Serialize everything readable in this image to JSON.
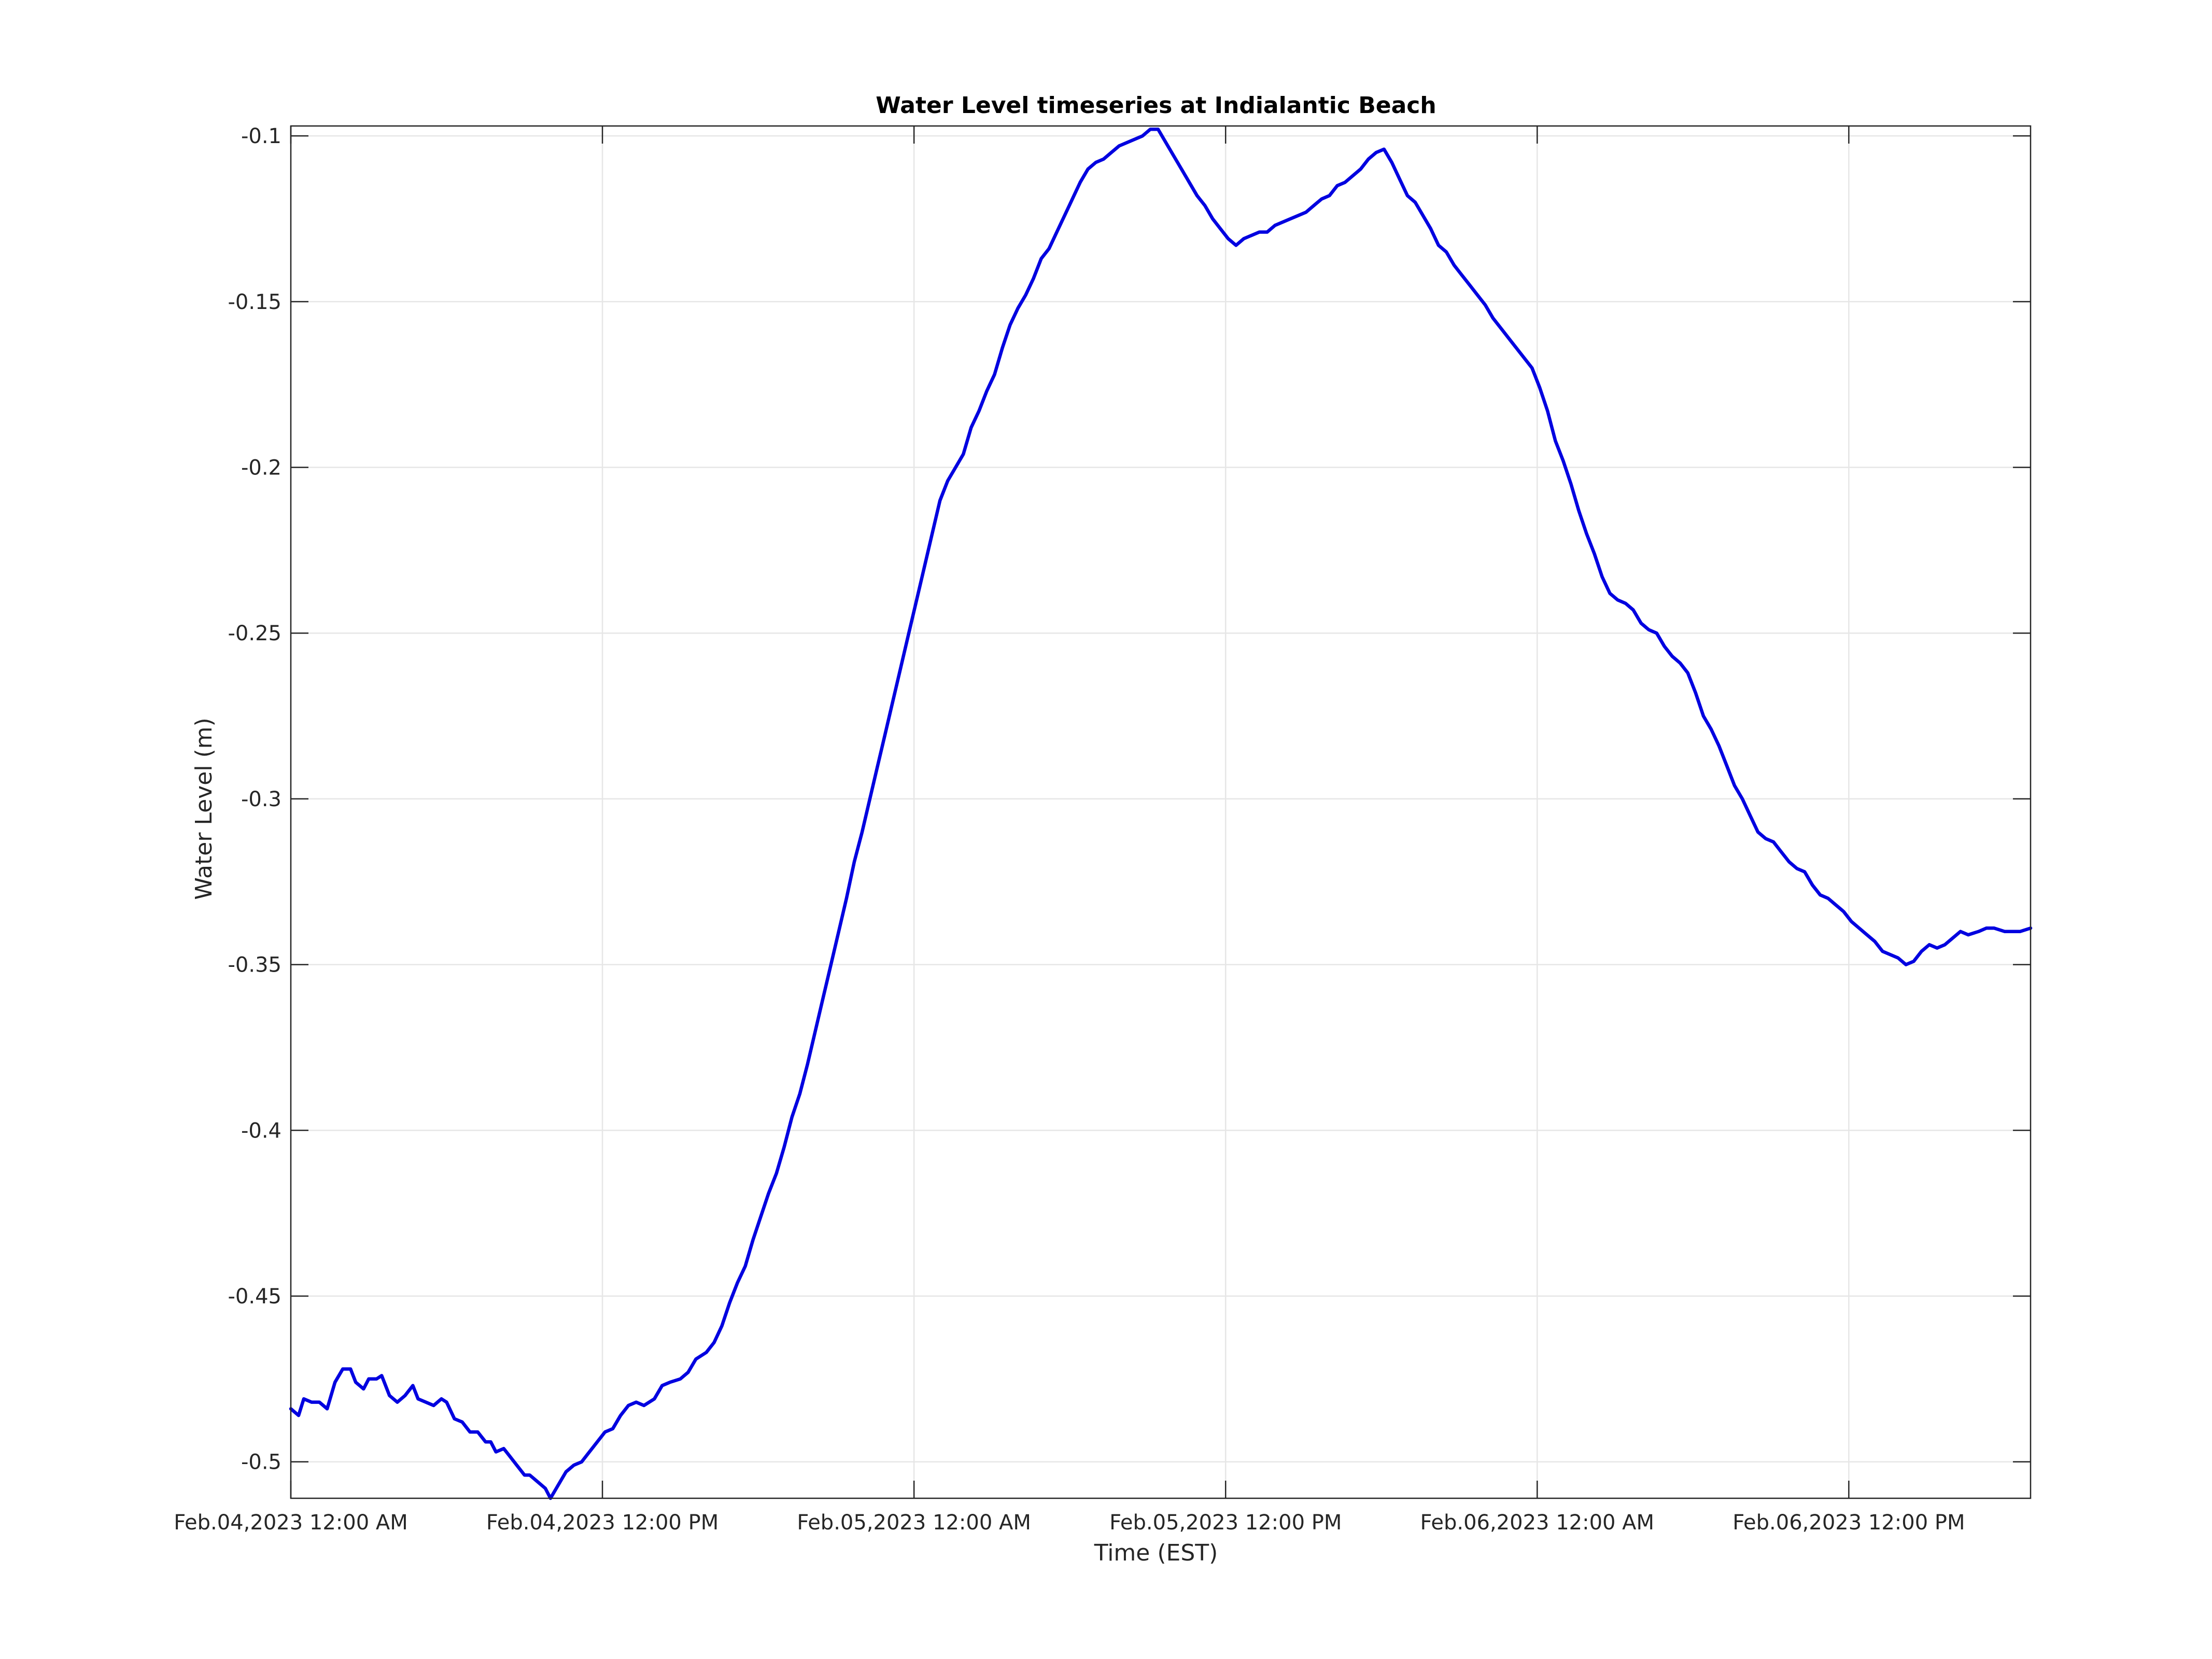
{
  "chart_data": {
    "type": "line",
    "title": "Water Level timeseries at Indialantic Beach",
    "xlabel": "Time (EST)",
    "ylabel": "Water Level (m)",
    "x_unit": "hours",
    "xlim": [
      0,
      67
    ],
    "ylim": [
      -0.511,
      -0.097
    ],
    "grid": true,
    "x_ticks": [
      {
        "value": 0,
        "label": "Feb.04,2023 12:00 AM"
      },
      {
        "value": 12,
        "label": "Feb.04,2023 12:00 PM"
      },
      {
        "value": 24,
        "label": "Feb.05,2023 12:00 AM"
      },
      {
        "value": 36,
        "label": "Feb.05,2023 12:00 PM"
      },
      {
        "value": 48,
        "label": "Feb.06,2023 12:00 AM"
      },
      {
        "value": 60,
        "label": "Feb.06,2023 12:00 PM"
      }
    ],
    "y_ticks": [
      {
        "value": -0.1,
        "label": "-0.1"
      },
      {
        "value": -0.15,
        "label": "-0.15"
      },
      {
        "value": -0.2,
        "label": "-0.2"
      },
      {
        "value": -0.25,
        "label": "-0.25"
      },
      {
        "value": -0.3,
        "label": "-0.3"
      },
      {
        "value": -0.35,
        "label": "-0.35"
      },
      {
        "value": -0.4,
        "label": "-0.4"
      },
      {
        "value": -0.45,
        "label": "-0.45"
      },
      {
        "value": -0.5,
        "label": "-0.5"
      }
    ],
    "series": [
      {
        "color": "#0000e0",
        "points": [
          [
            0.0,
            -0.484
          ],
          [
            0.3,
            -0.486
          ],
          [
            0.5,
            -0.481
          ],
          [
            0.8,
            -0.482
          ],
          [
            1.1,
            -0.482
          ],
          [
            1.4,
            -0.484
          ],
          [
            1.7,
            -0.476
          ],
          [
            2.0,
            -0.472
          ],
          [
            2.3,
            -0.472
          ],
          [
            2.5,
            -0.476
          ],
          [
            2.8,
            -0.478
          ],
          [
            3.0,
            -0.475
          ],
          [
            3.3,
            -0.475
          ],
          [
            3.5,
            -0.474
          ],
          [
            3.8,
            -0.48
          ],
          [
            4.1,
            -0.482
          ],
          [
            4.4,
            -0.48
          ],
          [
            4.7,
            -0.477
          ],
          [
            4.9,
            -0.481
          ],
          [
            5.2,
            -0.482
          ],
          [
            5.5,
            -0.483
          ],
          [
            5.8,
            -0.481
          ],
          [
            6.0,
            -0.482
          ],
          [
            6.3,
            -0.487
          ],
          [
            6.6,
            -0.488
          ],
          [
            6.9,
            -0.491
          ],
          [
            7.2,
            -0.491
          ],
          [
            7.5,
            -0.494
          ],
          [
            7.7,
            -0.494
          ],
          [
            7.9,
            -0.497
          ],
          [
            8.2,
            -0.496
          ],
          [
            8.4,
            -0.498
          ],
          [
            8.7,
            -0.501
          ],
          [
            9.0,
            -0.504
          ],
          [
            9.2,
            -0.504
          ],
          [
            9.5,
            -0.506
          ],
          [
            9.8,
            -0.508
          ],
          [
            10.0,
            -0.511
          ],
          [
            10.3,
            -0.507
          ],
          [
            10.6,
            -0.503
          ],
          [
            10.9,
            -0.501
          ],
          [
            11.2,
            -0.5
          ],
          [
            11.5,
            -0.497
          ],
          [
            11.8,
            -0.494
          ],
          [
            12.1,
            -0.491
          ],
          [
            12.4,
            -0.49
          ],
          [
            12.7,
            -0.486
          ],
          [
            13.0,
            -0.483
          ],
          [
            13.3,
            -0.482
          ],
          [
            13.6,
            -0.483
          ],
          [
            14.0,
            -0.481
          ],
          [
            14.3,
            -0.477
          ],
          [
            14.6,
            -0.476
          ],
          [
            15.0,
            -0.475
          ],
          [
            15.3,
            -0.473
          ],
          [
            15.6,
            -0.469
          ],
          [
            16.0,
            -0.467
          ],
          [
            16.3,
            -0.464
          ],
          [
            16.6,
            -0.459
          ],
          [
            16.9,
            -0.452
          ],
          [
            17.2,
            -0.446
          ],
          [
            17.5,
            -0.441
          ],
          [
            17.8,
            -0.433
          ],
          [
            18.1,
            -0.426
          ],
          [
            18.4,
            -0.419
          ],
          [
            18.7,
            -0.413
          ],
          [
            19.0,
            -0.405
          ],
          [
            19.3,
            -0.396
          ],
          [
            19.6,
            -0.389
          ],
          [
            19.9,
            -0.38
          ],
          [
            20.2,
            -0.37
          ],
          [
            20.5,
            -0.36
          ],
          [
            20.8,
            -0.35
          ],
          [
            21.1,
            -0.34
          ],
          [
            21.4,
            -0.33
          ],
          [
            21.7,
            -0.319
          ],
          [
            22.0,
            -0.31
          ],
          [
            22.3,
            -0.3
          ],
          [
            22.6,
            -0.29
          ],
          [
            22.9,
            -0.28
          ],
          [
            23.2,
            -0.27
          ],
          [
            23.5,
            -0.26
          ],
          [
            23.8,
            -0.25
          ],
          [
            24.1,
            -0.24
          ],
          [
            24.4,
            -0.23
          ],
          [
            24.7,
            -0.22
          ],
          [
            25.0,
            -0.21
          ],
          [
            25.3,
            -0.204
          ],
          [
            25.6,
            -0.2
          ],
          [
            25.9,
            -0.196
          ],
          [
            26.2,
            -0.188
          ],
          [
            26.5,
            -0.183
          ],
          [
            26.8,
            -0.177
          ],
          [
            27.1,
            -0.172
          ],
          [
            27.4,
            -0.164
          ],
          [
            27.7,
            -0.157
          ],
          [
            28.0,
            -0.152
          ],
          [
            28.3,
            -0.148
          ],
          [
            28.6,
            -0.143
          ],
          [
            28.9,
            -0.137
          ],
          [
            29.2,
            -0.134
          ],
          [
            29.5,
            -0.129
          ],
          [
            29.8,
            -0.124
          ],
          [
            30.1,
            -0.119
          ],
          [
            30.4,
            -0.114
          ],
          [
            30.7,
            -0.11
          ],
          [
            31.0,
            -0.108
          ],
          [
            31.3,
            -0.107
          ],
          [
            31.6,
            -0.105
          ],
          [
            31.9,
            -0.103
          ],
          [
            32.2,
            -0.102
          ],
          [
            32.5,
            -0.101
          ],
          [
            32.8,
            -0.1
          ],
          [
            33.1,
            -0.098
          ],
          [
            33.4,
            -0.098
          ],
          [
            33.7,
            -0.102
          ],
          [
            34.0,
            -0.106
          ],
          [
            34.3,
            -0.11
          ],
          [
            34.6,
            -0.114
          ],
          [
            34.9,
            -0.118
          ],
          [
            35.2,
            -0.121
          ],
          [
            35.5,
            -0.125
          ],
          [
            35.8,
            -0.128
          ],
          [
            36.1,
            -0.131
          ],
          [
            36.4,
            -0.133
          ],
          [
            36.7,
            -0.131
          ],
          [
            37.0,
            -0.13
          ],
          [
            37.3,
            -0.129
          ],
          [
            37.6,
            -0.129
          ],
          [
            37.9,
            -0.127
          ],
          [
            38.2,
            -0.126
          ],
          [
            38.5,
            -0.125
          ],
          [
            38.8,
            -0.124
          ],
          [
            39.1,
            -0.123
          ],
          [
            39.4,
            -0.121
          ],
          [
            39.7,
            -0.119
          ],
          [
            40.0,
            -0.118
          ],
          [
            40.3,
            -0.115
          ],
          [
            40.6,
            -0.114
          ],
          [
            40.9,
            -0.112
          ],
          [
            41.2,
            -0.11
          ],
          [
            41.5,
            -0.107
          ],
          [
            41.8,
            -0.105
          ],
          [
            42.1,
            -0.104
          ],
          [
            42.4,
            -0.108
          ],
          [
            42.7,
            -0.113
          ],
          [
            43.0,
            -0.118
          ],
          [
            43.3,
            -0.12
          ],
          [
            43.6,
            -0.124
          ],
          [
            43.9,
            -0.128
          ],
          [
            44.2,
            -0.133
          ],
          [
            44.5,
            -0.135
          ],
          [
            44.8,
            -0.139
          ],
          [
            45.1,
            -0.142
          ],
          [
            45.4,
            -0.145
          ],
          [
            45.7,
            -0.148
          ],
          [
            46.0,
            -0.151
          ],
          [
            46.3,
            -0.155
          ],
          [
            46.6,
            -0.158
          ],
          [
            46.9,
            -0.161
          ],
          [
            47.2,
            -0.164
          ],
          [
            47.5,
            -0.167
          ],
          [
            47.8,
            -0.17
          ],
          [
            48.1,
            -0.176
          ],
          [
            48.4,
            -0.183
          ],
          [
            48.7,
            -0.192
          ],
          [
            49.0,
            -0.198
          ],
          [
            49.3,
            -0.205
          ],
          [
            49.6,
            -0.213
          ],
          [
            49.9,
            -0.22
          ],
          [
            50.2,
            -0.226
          ],
          [
            50.5,
            -0.233
          ],
          [
            50.8,
            -0.238
          ],
          [
            51.1,
            -0.24
          ],
          [
            51.4,
            -0.241
          ],
          [
            51.7,
            -0.243
          ],
          [
            52.0,
            -0.247
          ],
          [
            52.3,
            -0.249
          ],
          [
            52.6,
            -0.25
          ],
          [
            52.9,
            -0.254
          ],
          [
            53.2,
            -0.257
          ],
          [
            53.5,
            -0.259
          ],
          [
            53.8,
            -0.262
          ],
          [
            54.1,
            -0.268
          ],
          [
            54.4,
            -0.275
          ],
          [
            54.7,
            -0.279
          ],
          [
            55.0,
            -0.284
          ],
          [
            55.3,
            -0.29
          ],
          [
            55.6,
            -0.296
          ],
          [
            55.9,
            -0.3
          ],
          [
            56.2,
            -0.305
          ],
          [
            56.5,
            -0.31
          ],
          [
            56.8,
            -0.312
          ],
          [
            57.1,
            -0.313
          ],
          [
            57.4,
            -0.316
          ],
          [
            57.7,
            -0.319
          ],
          [
            58.0,
            -0.321
          ],
          [
            58.3,
            -0.322
          ],
          [
            58.6,
            -0.326
          ],
          [
            58.9,
            -0.329
          ],
          [
            59.2,
            -0.33
          ],
          [
            59.5,
            -0.332
          ],
          [
            59.8,
            -0.334
          ],
          [
            60.1,
            -0.337
          ],
          [
            60.4,
            -0.339
          ],
          [
            60.7,
            -0.341
          ],
          [
            61.0,
            -0.343
          ],
          [
            61.3,
            -0.346
          ],
          [
            61.6,
            -0.347
          ],
          [
            61.9,
            -0.348
          ],
          [
            62.2,
            -0.35
          ],
          [
            62.5,
            -0.349
          ],
          [
            62.8,
            -0.346
          ],
          [
            63.1,
            -0.344
          ],
          [
            63.4,
            -0.345
          ],
          [
            63.7,
            -0.344
          ],
          [
            64.0,
            -0.342
          ],
          [
            64.3,
            -0.34
          ],
          [
            64.6,
            -0.341
          ],
          [
            65.0,
            -0.34
          ],
          [
            65.3,
            -0.339
          ],
          [
            65.6,
            -0.339
          ],
          [
            66.0,
            -0.34
          ],
          [
            66.3,
            -0.34
          ],
          [
            66.6,
            -0.34
          ],
          [
            67.0,
            -0.339
          ]
        ]
      }
    ]
  }
}
